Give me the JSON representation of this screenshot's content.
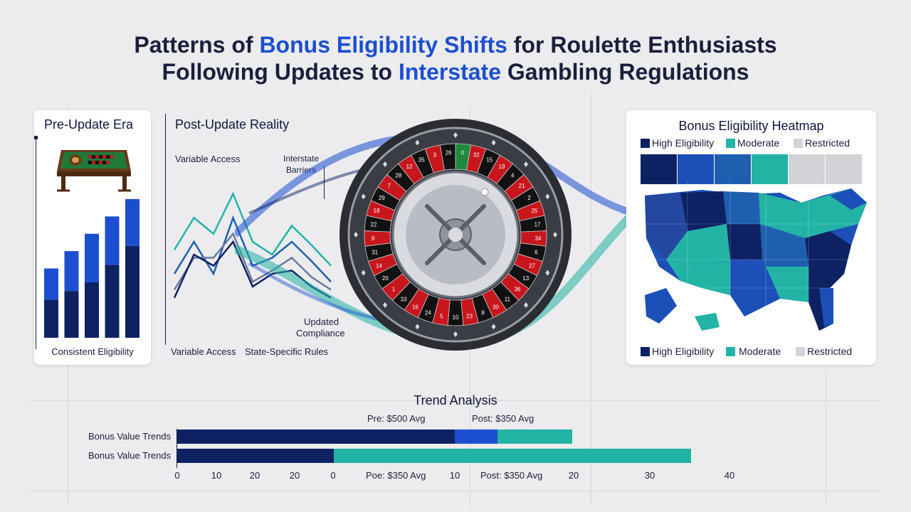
{
  "title": {
    "line1_a": "Patterns of ",
    "line1_hl": "Bonus Eligibility Shifts",
    "line1_b": " for Roulette Enthusiasts",
    "line2_a": "Following Updates to ",
    "line2_hl": "Interstate",
    "line2_b": " Gambling Regulations"
  },
  "pre_panel": {
    "title": "Pre-Update Era",
    "caption": "Consistent Eligibility",
    "icon": "roulette-table-icon"
  },
  "post_panel": {
    "title": "Post-Update Reality",
    "labels": {
      "variable_access": "Variable Access",
      "interstate_barriers_1": "Interstate",
      "interstate_barriers_2": "Barriers",
      "updated_compliance_1": "Updated",
      "updated_compliance_2": "Compliance",
      "bottom_variable_access": "Variable Access",
      "bottom_state_rules": "State-Specific Rules"
    }
  },
  "heatmap": {
    "title": "Bonus Eligibility Heatmap",
    "legend": [
      {
        "label": "High Eligibility",
        "color": "#0d2163"
      },
      {
        "label": "Moderate",
        "color": "#22b3a5"
      },
      {
        "label": "Restricted",
        "color": "#d2d3d6"
      }
    ],
    "top_row_colors": [
      "#0d2163",
      "#1c4fb7",
      "#1f5fb0",
      "#22b3a5",
      "#d2d3d6",
      "#d2d3d6"
    ]
  },
  "trend": {
    "title": "Trend Analysis",
    "label_pre": "Pre: $500 Avg",
    "label_post": "Post: $350 Avg",
    "label_bottom_a": "Poe: $350 Avg",
    "label_bottom_b": "Post: $350 Avg"
  },
  "colors": {
    "navy": "#0d2163",
    "blue": "#1c4fcf",
    "teal": "#22b3a5",
    "gray": "#d2d3d6"
  },
  "chart_data": [
    {
      "type": "bar",
      "series": [
        {
          "values": [
            4,
            5,
            6,
            7,
            8
          ]
        },
        {
          "values": [
            2.2,
            2.7,
            3.2,
            4.2,
            5.3
          ]
        }
      ]
    },
    {
      "type": "line",
      "series": [
        {
          "values": [
            35,
            55,
            45,
            70,
            40,
            32,
            50,
            38,
            25
          ]
        },
        {
          "values": [
            20,
            40,
            20,
            55,
            25,
            30,
            40,
            28,
            15
          ]
        },
        {
          "values": [
            10,
            30,
            30,
            45,
            15,
            22,
            30,
            18,
            10
          ]
        },
        {
          "values": [
            5,
            32,
            25,
            40,
            12,
            20,
            22,
            12,
            5
          ]
        }
      ]
    },
    {
      "type": "bar",
      "axis_ticks": [
        "0",
        "10",
        "20",
        "20",
        "0",
        "10",
        "20",
        "30",
        "40"
      ],
      "rows": [
        {
          "label": "Bonus Value Trends",
          "segments": [
            {
              "color": "navy",
              "value": 390
            },
            {
              "color": "blue",
              "value": 60
            },
            {
              "color": "teal",
              "value": 105
            }
          ]
        },
        {
          "label": "Bonus Value Trends",
          "segments": [
            {
              "color": "navy",
              "value": 220
            },
            {
              "color": "teal",
              "value": 502
            }
          ]
        }
      ]
    }
  ]
}
